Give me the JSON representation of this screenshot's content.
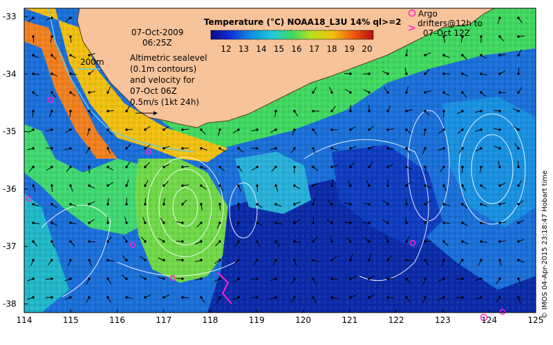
{
  "map": {
    "date": "07-Oct-2009",
    "time": "06:25Z",
    "colorbar": {
      "title": "Temperature (°C) NOAA18_L3U 14% ql>=2",
      "ticks": [
        "12",
        "13",
        "14",
        "15",
        "16",
        "17",
        "18",
        "19",
        "20"
      ]
    },
    "legend_200m": "200m",
    "altimetry_note": [
      "Altimetric sealevel",
      "(0.1m contours)",
      "and velocity for",
      "07-Oct 06Z",
      "0.5m/s (1kt 24h)"
    ],
    "argo_legend": [
      "Argo",
      "drifters@12h to",
      "07-Oct 12Z"
    ],
    "credit": "© IMOS 04-Apr-2015 23:18:47 Hobart time",
    "y_ticks": [
      "-33",
      "-34",
      "-35",
      "-36",
      "-37",
      "-38"
    ],
    "x_ticks": [
      "114",
      "115",
      "116",
      "117",
      "118",
      "119",
      "120",
      "121",
      "122",
      "123",
      "124",
      "125"
    ],
    "colors": {
      "land": "#f7c39a",
      "coast_line": "#5a3a20",
      "argo": "#ff22cc",
      "contour": "#ffffff",
      "isobath": "#66ccee"
    }
  }
}
